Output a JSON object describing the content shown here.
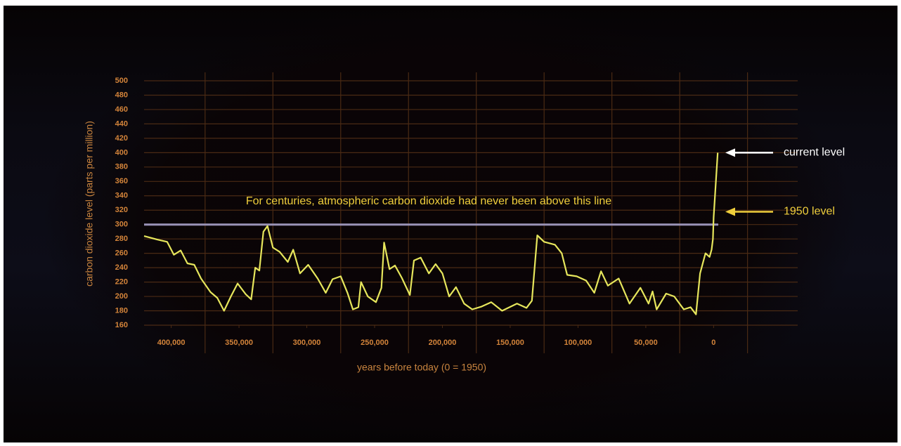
{
  "chart_data": {
    "type": "line",
    "xlabel": "years before today (0 = 1950)",
    "ylabel": "carbon dioxide level (parts per million)",
    "color": "#e6e65c",
    "xlim": [
      420000,
      -62000
    ],
    "ylim": [
      160,
      500
    ],
    "xticks": [
      {
        "value": 400000,
        "label": "400,000"
      },
      {
        "value": 350000,
        "label": "350,000"
      },
      {
        "value": 300000,
        "label": "300,000"
      },
      {
        "value": 250000,
        "label": "250,000"
      },
      {
        "value": 200000,
        "label": "200,000"
      },
      {
        "value": 150000,
        "label": "150,000"
      },
      {
        "value": 100000,
        "label": "100,000"
      },
      {
        "value": 50000,
        "label": "50,000"
      },
      0
    ],
    "xgrid": [
      375000,
      325000,
      275000,
      225000,
      175000,
      125000,
      75000,
      25000,
      -25000
    ],
    "yticks": [
      160,
      180,
      200,
      220,
      240,
      260,
      280,
      300,
      320,
      340,
      360,
      380,
      400,
      420,
      440,
      460,
      480,
      500
    ],
    "grid": true,
    "x": [
      420000,
      410000,
      403000,
      398000,
      393000,
      388000,
      383000,
      378000,
      371000,
      366000,
      361000,
      356000,
      351000,
      345000,
      341000,
      338000,
      335000,
      332000,
      329000,
      325000,
      320000,
      314000,
      310000,
      305000,
      299000,
      292000,
      286000,
      281000,
      275000,
      270000,
      266000,
      262000,
      260000,
      255000,
      249000,
      245000,
      243000,
      239000,
      235000,
      230000,
      224000,
      221000,
      216000,
      210000,
      205000,
      200000,
      195000,
      190000,
      184000,
      178000,
      171000,
      164000,
      156000,
      145000,
      138000,
      134000,
      130000,
      125000,
      117000,
      112000,
      108000,
      101000,
      94000,
      88000,
      83000,
      78000,
      70000,
      62000,
      54000,
      48000,
      45000,
      42000,
      35000,
      29000,
      22000,
      17000,
      13000,
      10000,
      6000,
      3000,
      1500,
      500,
      0,
      -3000
    ],
    "values": [
      284,
      279,
      276,
      258,
      264,
      246,
      244,
      225,
      206,
      198,
      180,
      200,
      218,
      203,
      196,
      240,
      236,
      290,
      298,
      268,
      262,
      248,
      265,
      232,
      244,
      225,
      205,
      224,
      228,
      205,
      182,
      185,
      220,
      200,
      192,
      212,
      275,
      238,
      243,
      226,
      202,
      250,
      254,
      232,
      245,
      232,
      200,
      213,
      190,
      182,
      186,
      192,
      180,
      190,
      184,
      194,
      285,
      276,
      272,
      260,
      230,
      228,
      222,
      205,
      235,
      215,
      225,
      190,
      212,
      190,
      207,
      182,
      204,
      200,
      182,
      185,
      175,
      232,
      260,
      255,
      265,
      280,
      310,
      400
    ],
    "threshold": {
      "text": "For centuries, atmospheric carbon dioxide had never been above this line",
      "y": 300
    },
    "annotations": [
      {
        "text": "current level",
        "y": 400
      },
      {
        "text": "1950 level",
        "y": 310
      }
    ]
  }
}
